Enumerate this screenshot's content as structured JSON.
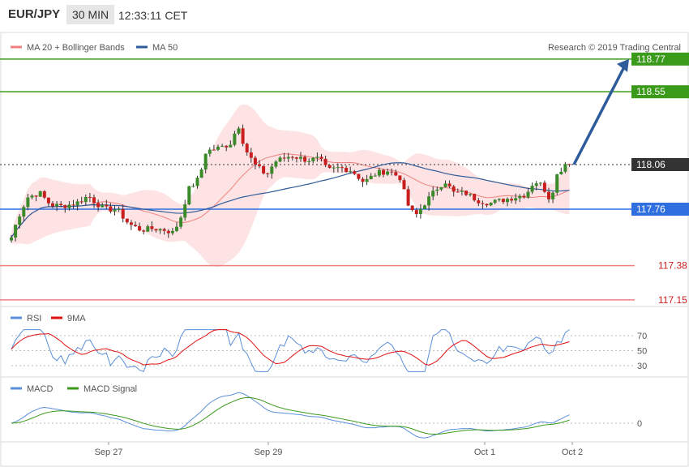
{
  "header": {
    "symbol": "EUR/JPY",
    "timeframe": "30 MIN",
    "time": "12:33:11 CET"
  },
  "copyright": "Research © 2019 Trading Central",
  "legend": {
    "main": [
      {
        "label": "MA 20 + Bollinger Bands",
        "color": "#f08080"
      },
      {
        "label": "MA 50",
        "color": "#2e5b9a"
      }
    ],
    "rsi": [
      {
        "label": "RSI",
        "color": "#5b8fd9"
      },
      {
        "label": "9MA",
        "color": "#e01010"
      }
    ],
    "macd": [
      {
        "label": "MACD",
        "color": "#5b8fd9"
      },
      {
        "label": "MACD Signal",
        "color": "#3a9a1a"
      }
    ]
  },
  "chart_data": [
    {
      "type": "candlestick",
      "title": "EUR/JPY 30 MIN",
      "x_ticks": [
        "Sep 27",
        "Sep 29",
        "Oct 1",
        "Oct 2"
      ],
      "levels": [
        {
          "value": 118.77,
          "label": "118.77",
          "color": "#3a9a1a"
        },
        {
          "value": 118.55,
          "label": "118.55",
          "color": "#3a9a1a"
        },
        {
          "value": 118.06,
          "label": "118.06",
          "color": "#333333"
        },
        {
          "value": 117.76,
          "label": "117.76",
          "color": "#2f6fe0"
        },
        {
          "value": 117.38,
          "label": "117.38",
          "color": "#f08080"
        },
        {
          "value": 117.15,
          "label": "117.15",
          "color": "#f08080"
        }
      ],
      "last_price": 118.06,
      "forecast": {
        "from": 118.06,
        "to": 118.77
      },
      "ylim": [
        117.1,
        118.85
      ]
    },
    {
      "type": "line",
      "title": "RSI",
      "y_ticks": [
        "70",
        "50",
        "30"
      ],
      "ylim": [
        20,
        80
      ]
    },
    {
      "type": "line",
      "title": "MACD",
      "y_ticks": [
        "0"
      ]
    }
  ]
}
